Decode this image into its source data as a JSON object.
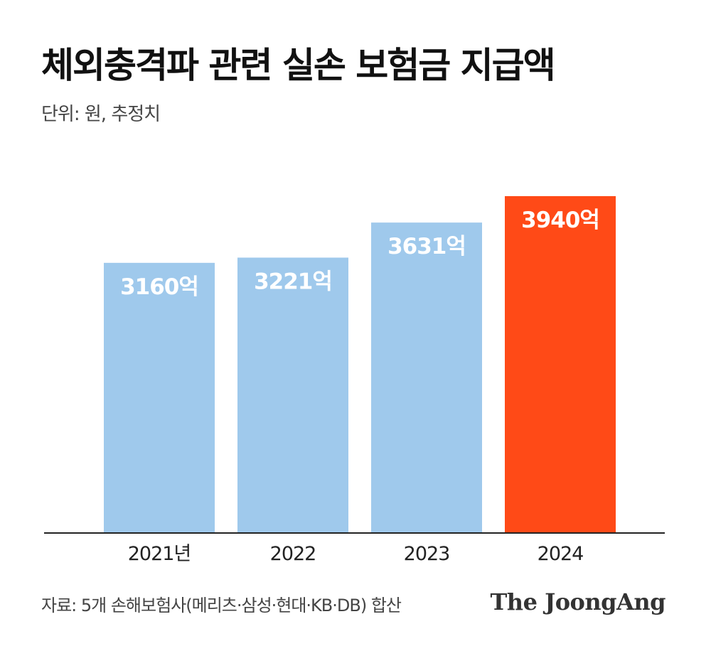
{
  "header": {
    "title": "체외충격파 관련 실손 보험금 지급액",
    "subtitle": "단위: 원, 추정치"
  },
  "footer": {
    "source": "자료: 5개 손해보험사(메리츠·삼성·현대·KB·DB) 합산",
    "logo": "The JoongAng"
  },
  "colors": {
    "bar": "#9fc9ec",
    "highlight": "#ff4a17",
    "axis": "#222222",
    "label": "#ffffff"
  },
  "chart_data": {
    "type": "bar",
    "categories": [
      "2021년",
      "2022",
      "2023",
      "2024"
    ],
    "values": [
      3160,
      3221,
      3631,
      3940
    ],
    "value_labels": [
      "3160억",
      "3221억",
      "3631억",
      "3940억"
    ],
    "highlight_index": 3,
    "title": "체외충격파 관련 실손 보험금 지급액",
    "subtitle": "단위: 원, 추정치",
    "unit": "억",
    "xlabel": "",
    "ylabel": "",
    "ylim": [
      0,
      4200
    ],
    "grid": false,
    "legend": "none"
  }
}
